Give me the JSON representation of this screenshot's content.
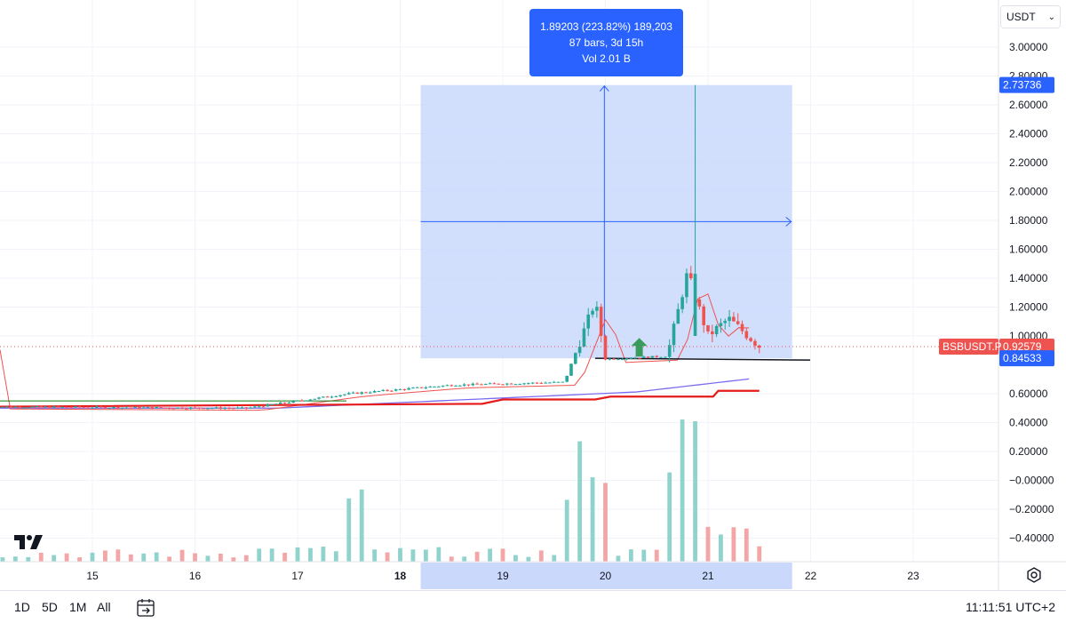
{
  "toolbar": {
    "currency": "USDT"
  },
  "measure": {
    "line1": "1.89203 (223.82%) 189,203",
    "line2": "87 bars, 3d 15h",
    "line3": "Vol 2.01 B"
  },
  "price_axis": {
    "ticks": [
      "3.00000",
      "2.80000",
      "2.60000",
      "2.40000",
      "2.20000",
      "2.00000",
      "1.80000",
      "1.60000",
      "1.40000",
      "1.20000",
      "1.00000",
      "0.60000",
      "0.40000",
      "0.20000",
      "−0.00000",
      "−0.20000",
      "−0.40000"
    ],
    "tick_values": [
      3.0,
      2.8,
      2.6,
      2.4,
      2.2,
      2.0,
      1.8,
      1.6,
      1.4,
      1.2,
      1.0,
      0.6,
      0.4,
      0.2,
      0.0,
      -0.2,
      -0.4
    ],
    "label_high": "2.73736",
    "label_last": "0.92579",
    "label_low": "0.84533",
    "symbol_tag": "BSBUSDT.P"
  },
  "time_axis": {
    "labels": [
      "15",
      "16",
      "17",
      "18",
      "19",
      "20",
      "21",
      "22",
      "23"
    ]
  },
  "bottom_bar": {
    "ranges": [
      "1D",
      "5D",
      "1M",
      "All"
    ],
    "clock": "11:11:51 UTC+2"
  },
  "colors": {
    "up": "#26a69a",
    "down": "#ef5350",
    "up_volume": "#8fd3cc",
    "down_volume": "#f4a6a6",
    "measure_fill": "#c9d8fb",
    "accent": "#2962ff",
    "support_red": "#e51b1b",
    "ma_blue": "#7b6cf0"
  },
  "chart_data": {
    "type": "candlestick",
    "symbol": "BSBUSDT.P",
    "y_range": [
      -0.45,
      3.05
    ],
    "x_labels": [
      "15",
      "16",
      "17",
      "18",
      "19",
      "20",
      "21",
      "22",
      "23"
    ],
    "last_price": 0.92579,
    "measure": {
      "from": 0.84533,
      "to": 2.73736,
      "change": 1.89203,
      "change_pct": 223.82,
      "bars": 87,
      "duration": "3d 15h",
      "volume": "2.01 B"
    },
    "horizontal_levels": [
      0.84533
    ],
    "key_points": [
      {
        "day": 14.0,
        "price": 0.51
      },
      {
        "day": 16.5,
        "price": 0.5
      },
      {
        "day": 17.5,
        "price": 0.6
      },
      {
        "day": 18.5,
        "price": 0.66
      },
      {
        "day": 19.6,
        "price": 0.68
      },
      {
        "day": 19.9,
        "price": 1.24
      },
      {
        "day": 20.0,
        "price": 0.84
      },
      {
        "day": 20.6,
        "price": 0.86
      },
      {
        "day": 20.8,
        "price": 1.44
      },
      {
        "day": 21.0,
        "price": 1.0
      },
      {
        "day": 21.2,
        "price": 1.12
      },
      {
        "day": 21.5,
        "price": 0.93
      }
    ]
  }
}
